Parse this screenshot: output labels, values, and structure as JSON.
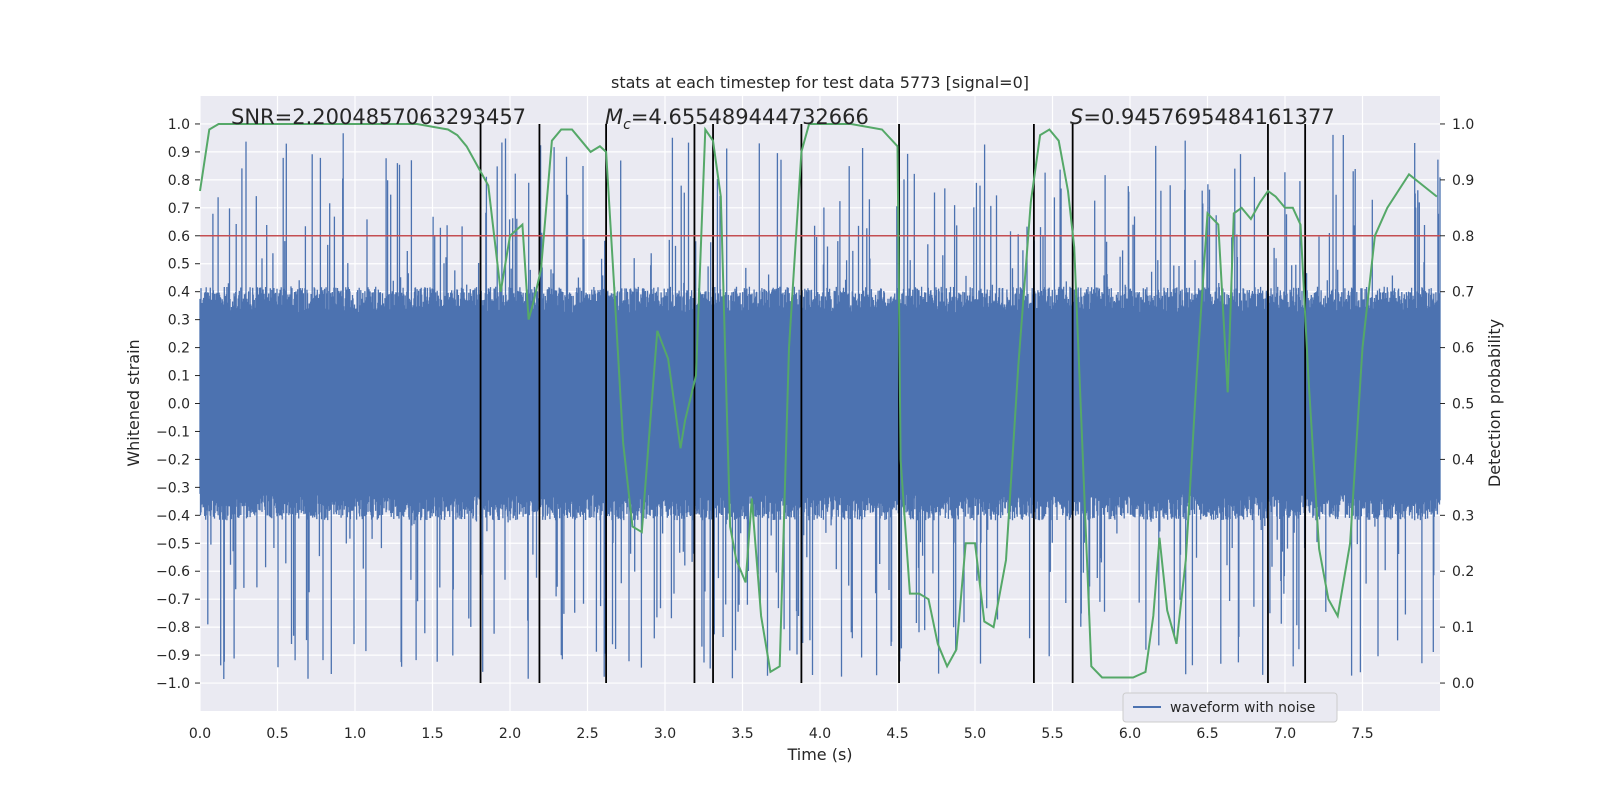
{
  "chart_data": {
    "type": "line",
    "title": "stats at each timestep for test data 5773 [signal=0]",
    "xlabel": "Time (s)",
    "ylabel_left": "Whitened strain",
    "ylabel_right": "Detection probability",
    "xlim": [
      0,
      8
    ],
    "ylim_left": [
      -1.1,
      1.1
    ],
    "ylim_right": [
      -0.05,
      1.05
    ],
    "x_ticks": [
      "0.0",
      "0.5",
      "1.0",
      "1.5",
      "2.0",
      "2.5",
      "3.0",
      "3.5",
      "4.0",
      "4.5",
      "5.0",
      "5.5",
      "6.0",
      "6.5",
      "7.0",
      "7.5"
    ],
    "left_ticks": [
      "1.0",
      "0.9",
      "0.8",
      "0.7",
      "0.6",
      "0.5",
      "0.4",
      "0.3",
      "0.2",
      "0.1",
      "0.0",
      "−0.1",
      "−0.2",
      "−0.3",
      "−0.4",
      "−0.5",
      "−0.6",
      "−0.7",
      "−0.8",
      "−0.9",
      "−1.0"
    ],
    "right_ticks": [
      "1.0",
      "0.9",
      "0.8",
      "0.7",
      "0.6",
      "0.5",
      "0.4",
      "0.3",
      "0.2",
      "0.1",
      "0.0"
    ],
    "threshold": 0.8,
    "annotations": {
      "snr": "SNR=2.2004857063293457",
      "mc_symbol": "M",
      "mc_sub": "c",
      "mc_value": "=4.655489444732666",
      "s_symbol": "S",
      "s_value": "=0.9457695484161377"
    },
    "vertical_lines_x": [
      1.81,
      2.19,
      2.62,
      3.19,
      3.31,
      3.88,
      4.51,
      5.38,
      5.63,
      6.89,
      7.13
    ],
    "waveform": {
      "name": "waveform with noise",
      "typical_envelope_upper": 0.38,
      "typical_envelope_lower": -0.38,
      "peak_min": -0.99,
      "peak_max": 0.97
    },
    "detection_probability": {
      "x": [
        0.0,
        0.06,
        0.12,
        0.2,
        0.3,
        0.5,
        0.8,
        1.0,
        1.2,
        1.4,
        1.6,
        1.66,
        1.72,
        1.78,
        1.86,
        1.94,
        2.0,
        2.08,
        2.12,
        2.15,
        2.2,
        2.27,
        2.33,
        2.4,
        2.46,
        2.52,
        2.58,
        2.62,
        2.67,
        2.73,
        2.79,
        2.85,
        2.9,
        2.95,
        3.02,
        3.1,
        3.13,
        3.2,
        3.26,
        3.31,
        3.36,
        3.42,
        3.46,
        3.52,
        3.56,
        3.62,
        3.68,
        3.74,
        3.8,
        3.88,
        3.93,
        3.98,
        4.05,
        4.2,
        4.4,
        4.5,
        4.52,
        4.58,
        4.64,
        4.7,
        4.76,
        4.82,
        4.88,
        4.94,
        5.0,
        5.06,
        5.12,
        5.2,
        5.28,
        5.36,
        5.42,
        5.48,
        5.54,
        5.6,
        5.64,
        5.68,
        5.75,
        5.82,
        5.88,
        5.94,
        6.02,
        6.1,
        6.15,
        6.19,
        6.24,
        6.3,
        6.36,
        6.43,
        6.5,
        6.57,
        6.63,
        6.67,
        6.72,
        6.78,
        6.84,
        6.89,
        6.94,
        7.0,
        7.05,
        7.1,
        7.15,
        7.22,
        7.28,
        7.34,
        7.42,
        7.5,
        7.58,
        7.66,
        7.8,
        7.98
      ],
      "y": [
        0.88,
        0.99,
        1.0,
        1.0,
        1.0,
        1.0,
        1.0,
        1.0,
        1.0,
        1.0,
        0.99,
        0.98,
        0.96,
        0.93,
        0.89,
        0.7,
        0.8,
        0.82,
        0.65,
        0.68,
        0.74,
        0.97,
        0.99,
        0.99,
        0.97,
        0.95,
        0.96,
        0.95,
        0.72,
        0.43,
        0.28,
        0.27,
        0.45,
        0.63,
        0.58,
        0.42,
        0.47,
        0.55,
        0.99,
        0.97,
        0.87,
        0.28,
        0.22,
        0.18,
        0.33,
        0.12,
        0.02,
        0.03,
        0.6,
        0.95,
        1.0,
        1.0,
        1.0,
        1.0,
        0.99,
        0.96,
        0.4,
        0.16,
        0.16,
        0.15,
        0.07,
        0.03,
        0.06,
        0.25,
        0.25,
        0.11,
        0.1,
        0.22,
        0.57,
        0.86,
        0.98,
        0.99,
        0.97,
        0.88,
        0.78,
        0.51,
        0.03,
        0.01,
        0.01,
        0.01,
        0.01,
        0.02,
        0.12,
        0.26,
        0.13,
        0.07,
        0.22,
        0.55,
        0.84,
        0.82,
        0.52,
        0.84,
        0.85,
        0.83,
        0.86,
        0.88,
        0.87,
        0.85,
        0.85,
        0.82,
        0.55,
        0.24,
        0.15,
        0.12,
        0.25,
        0.6,
        0.8,
        0.85,
        0.91,
        0.87
      ]
    },
    "legend_location": "lower-right",
    "grid": true,
    "colors": {
      "background": "#eaeaf2",
      "grid": "#ffffff",
      "waveform": "#4c72b0",
      "probability": "#55a868",
      "threshold": "#c44e52",
      "vlines": "#000000"
    }
  }
}
